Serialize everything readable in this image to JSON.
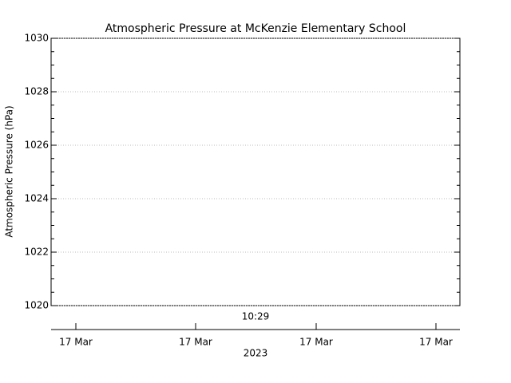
{
  "chart_data": {
    "type": "line",
    "title": "Atmospheric Pressure at McKenzie Elementary School",
    "y_label": "Atmospheric Pressure (hPa)",
    "ylim": [
      1020,
      1030
    ],
    "yticks": [
      1020,
      1022,
      1024,
      1026,
      1028,
      1030
    ],
    "grid": true,
    "time_annotation": "10:29",
    "x_tick_labels": [
      "17 Mar",
      "17 Mar",
      "17 Mar",
      "17 Mar"
    ],
    "x_label": "2023"
  }
}
